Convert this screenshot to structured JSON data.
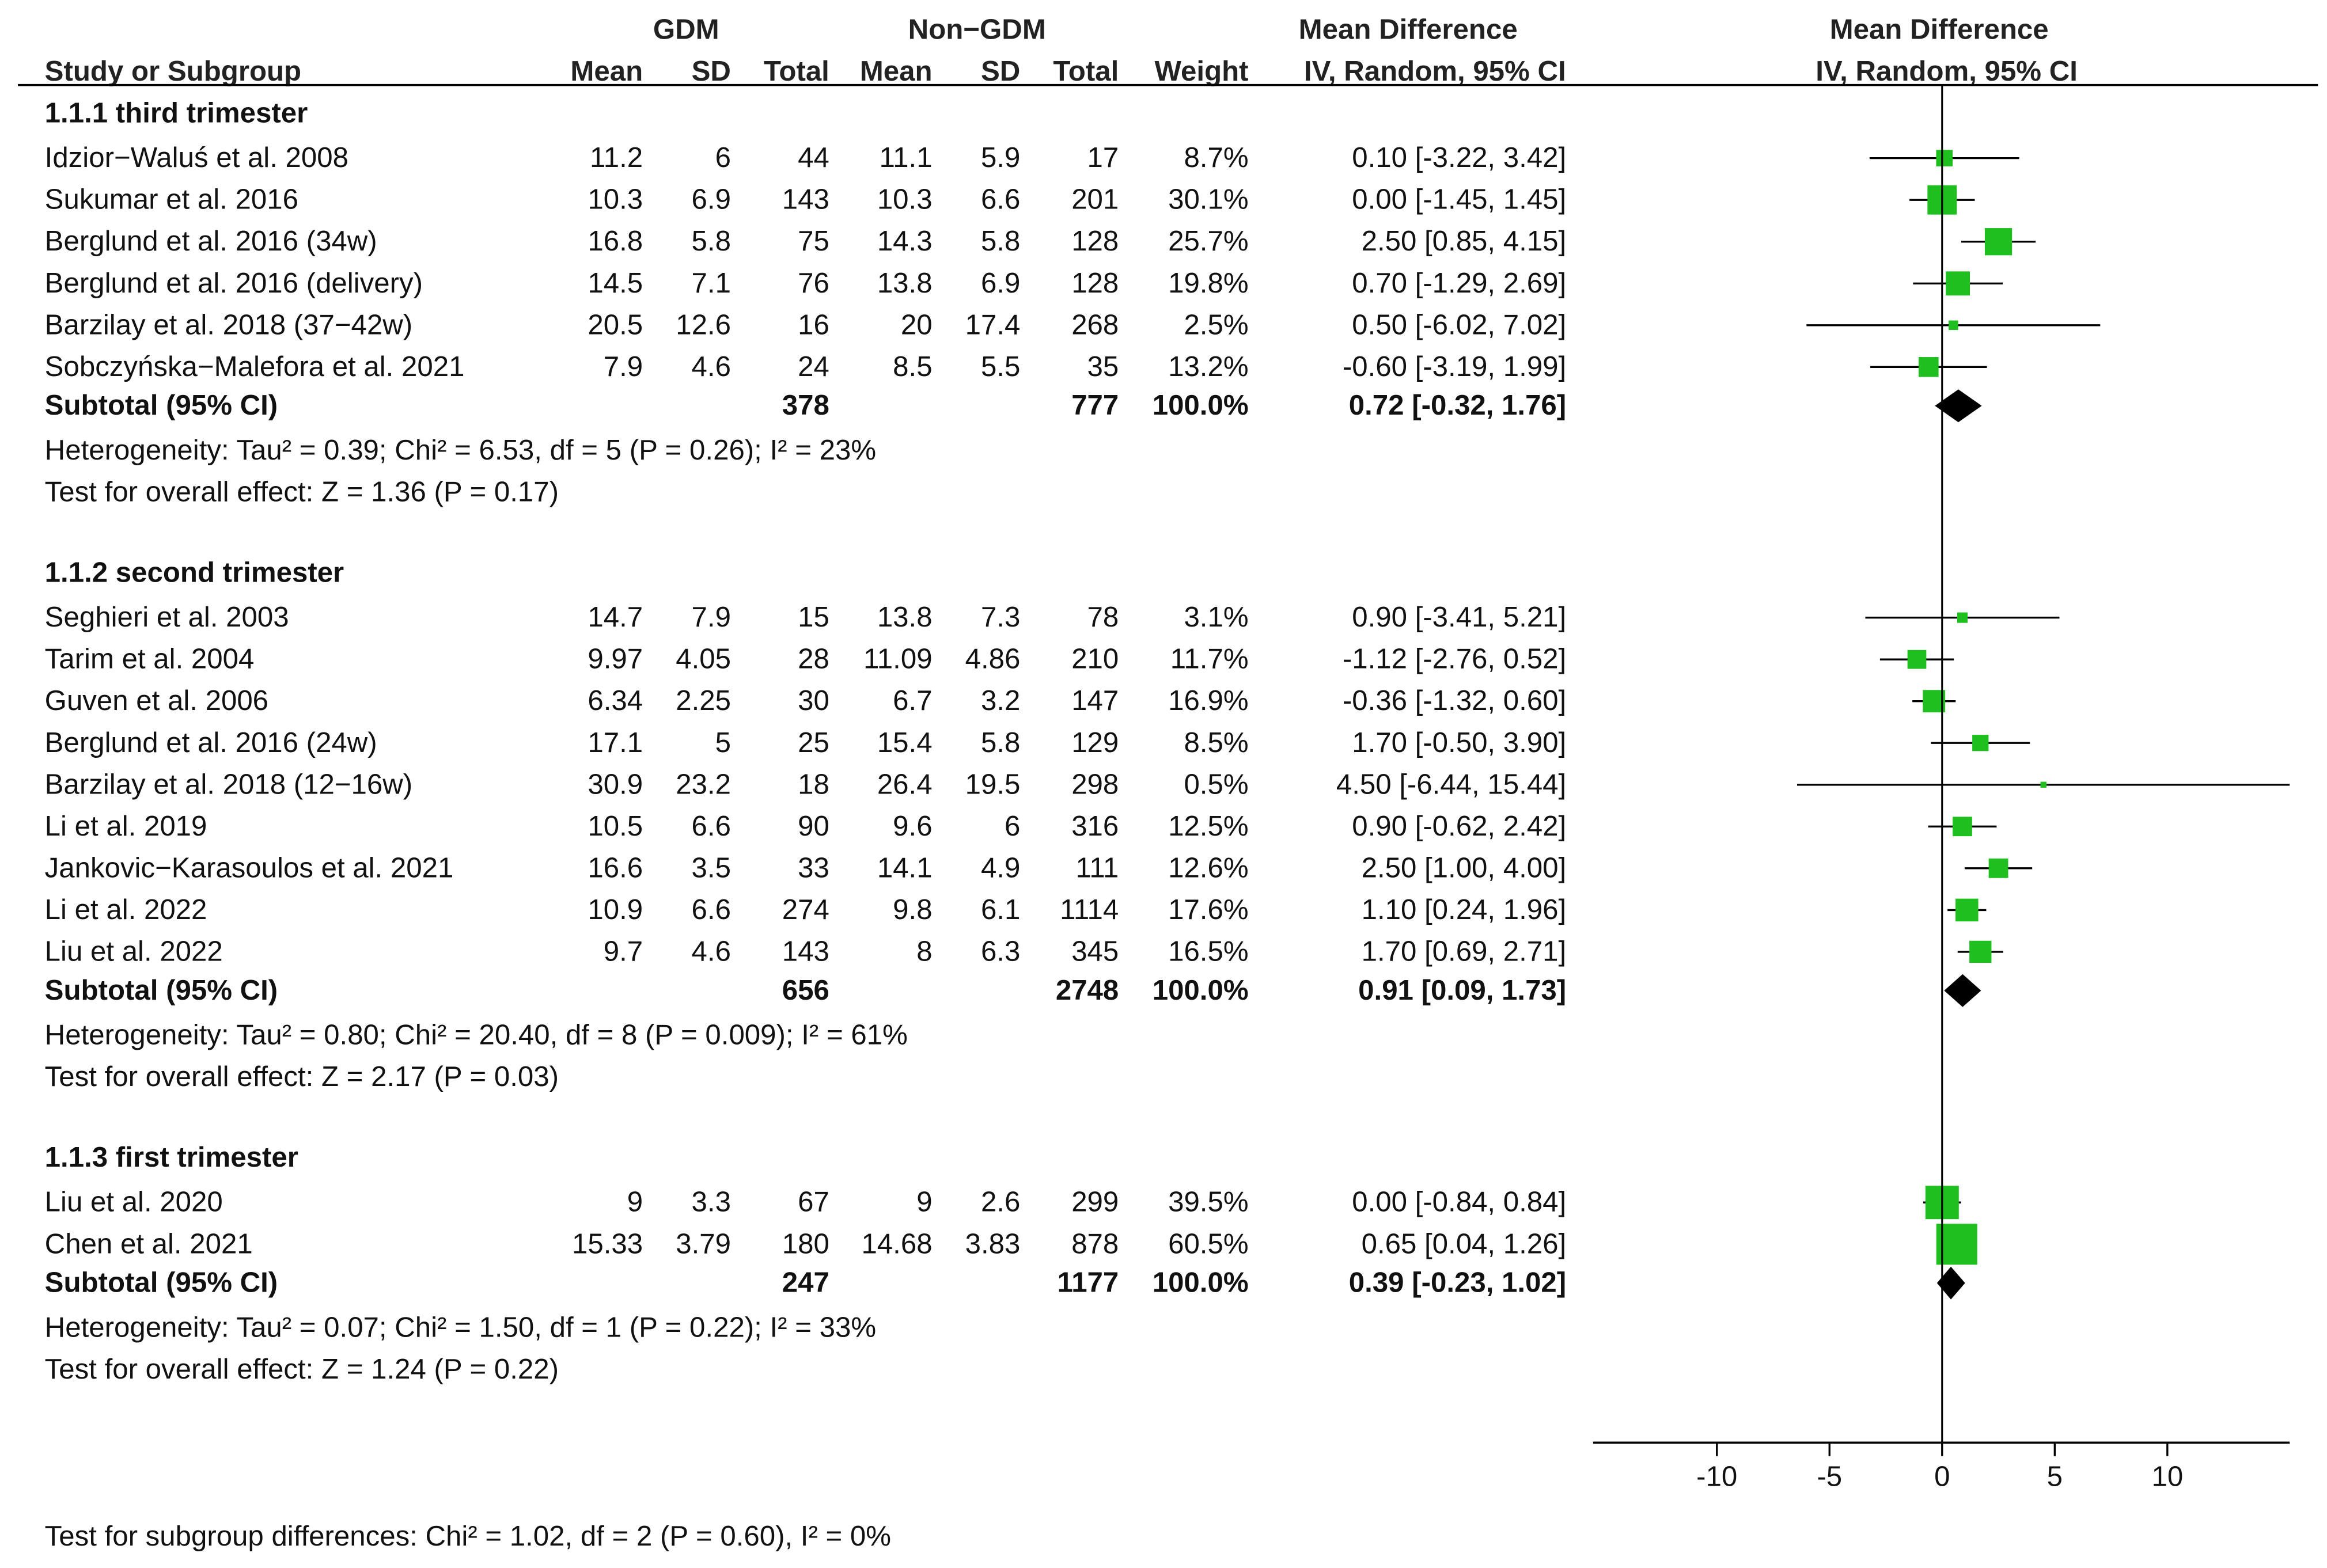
{
  "header": {
    "group1": "GDM",
    "group2": "Non−GDM",
    "md_text": "Mean Difference",
    "md_plot": "Mean Difference",
    "col_study": "Study or Subgroup",
    "col_mean1": "Mean",
    "col_sd1": "SD",
    "col_total1": "Total",
    "col_mean2": "Mean",
    "col_sd2": "SD",
    "col_total2": "Total",
    "col_weight": "Weight",
    "col_ci": "IV, Random, 95% CI",
    "col_ci_plot": "IV, Random, 95% CI"
  },
  "footer": {
    "subgroup_test": "Test for subgroup differences: Chi² = 1.02, df = 2 (P = 0.60), I² = 0%"
  },
  "colors": {
    "study_marker": "#1fbf1f",
    "summary_marker": "#000000",
    "line": "#000000"
  },
  "chart_data": {
    "type": "forest",
    "x_axis": {
      "range": [
        -15,
        15
      ],
      "ticks": [
        -10,
        -5,
        0,
        5,
        10
      ],
      "tick_labels": [
        "-10",
        "-5",
        "0",
        "5",
        "10"
      ]
    },
    "groups": [
      {
        "title": "1.1.1 third trimester",
        "studies": [
          {
            "name": "Idzior−Waluś et al. 2008",
            "mean1": "11.2",
            "sd1": "6",
            "n1": "44",
            "mean2": "11.1",
            "sd2": "5.9",
            "n2": "17",
            "weight": "8.7%",
            "ci_text": "0.10 [-3.22, 3.42]",
            "md": 0.1,
            "lo": -3.22,
            "hi": 3.42,
            "w": 8.7
          },
          {
            "name": "Sukumar et al. 2016",
            "mean1": "10.3",
            "sd1": "6.9",
            "n1": "143",
            "mean2": "10.3",
            "sd2": "6.6",
            "n2": "201",
            "weight": "30.1%",
            "ci_text": "0.00 [-1.45, 1.45]",
            "md": 0.0,
            "lo": -1.45,
            "hi": 1.45,
            "w": 30.1
          },
          {
            "name": "Berglund et al. 2016 (34w)",
            "mean1": "16.8",
            "sd1": "5.8",
            "n1": "75",
            "mean2": "14.3",
            "sd2": "5.8",
            "n2": "128",
            "weight": "25.7%",
            "ci_text": "2.50 [0.85, 4.15]",
            "md": 2.5,
            "lo": 0.85,
            "hi": 4.15,
            "w": 25.7
          },
          {
            "name": "Berglund et al. 2016 (delivery)",
            "mean1": "14.5",
            "sd1": "7.1",
            "n1": "76",
            "mean2": "13.8",
            "sd2": "6.9",
            "n2": "128",
            "weight": "19.8%",
            "ci_text": "0.70 [-1.29, 2.69]",
            "md": 0.7,
            "lo": -1.29,
            "hi": 2.69,
            "w": 19.8
          },
          {
            "name": "Barzilay et al. 2018 (37−42w)",
            "mean1": "20.5",
            "sd1": "12.6",
            "n1": "16",
            "mean2": "20",
            "sd2": "17.4",
            "n2": "268",
            "weight": "2.5%",
            "ci_text": "0.50 [-6.02, 7.02]",
            "md": 0.5,
            "lo": -6.02,
            "hi": 7.02,
            "w": 2.5
          },
          {
            "name": "Sobczyńska−Malefora et al. 2021",
            "mean1": "7.9",
            "sd1": "4.6",
            "n1": "24",
            "mean2": "8.5",
            "sd2": "5.5",
            "n2": "35",
            "weight": "13.2%",
            "ci_text": "-0.60 [-3.19, 1.99]",
            "md": -0.6,
            "lo": -3.19,
            "hi": 1.99,
            "w": 13.2
          }
        ],
        "subtotal": {
          "label": "Subtotal (95% CI)",
          "n1": "378",
          "n2": "777",
          "weight": "100.0%",
          "ci_text": "0.72 [-0.32, 1.76]",
          "md": 0.72,
          "lo": -0.32,
          "hi": 1.76
        },
        "heterogeneity": "Heterogeneity: Tau² = 0.39; Chi² = 6.53, df = 5 (P = 0.26); I² = 23%",
        "overall": "Test for overall effect: Z = 1.36 (P = 0.17)"
      },
      {
        "title": "1.1.2 second trimester",
        "studies": [
          {
            "name": "Seghieri et al. 2003",
            "mean1": "14.7",
            "sd1": "7.9",
            "n1": "15",
            "mean2": "13.8",
            "sd2": "7.3",
            "n2": "78",
            "weight": "3.1%",
            "ci_text": "0.90 [-3.41, 5.21]",
            "md": 0.9,
            "lo": -3.41,
            "hi": 5.21,
            "w": 3.1
          },
          {
            "name": "Tarim et al. 2004",
            "mean1": "9.97",
            "sd1": "4.05",
            "n1": "28",
            "mean2": "11.09",
            "sd2": "4.86",
            "n2": "210",
            "weight": "11.7%",
            "ci_text": "-1.12 [-2.76, 0.52]",
            "md": -1.12,
            "lo": -2.76,
            "hi": 0.52,
            "w": 11.7
          },
          {
            "name": "Guven et al. 2006",
            "mean1": "6.34",
            "sd1": "2.25",
            "n1": "30",
            "mean2": "6.7",
            "sd2": "3.2",
            "n2": "147",
            "weight": "16.9%",
            "ci_text": "-0.36 [-1.32, 0.60]",
            "md": -0.36,
            "lo": -1.32,
            "hi": 0.6,
            "w": 16.9
          },
          {
            "name": "Berglund et al. 2016 (24w)",
            "mean1": "17.1",
            "sd1": "5",
            "n1": "25",
            "mean2": "15.4",
            "sd2": "5.8",
            "n2": "129",
            "weight": "8.5%",
            "ci_text": "1.70 [-0.50, 3.90]",
            "md": 1.7,
            "lo": -0.5,
            "hi": 3.9,
            "w": 8.5
          },
          {
            "name": "Barzilay et al. 2018 (12−16w)",
            "mean1": "30.9",
            "sd1": "23.2",
            "n1": "18",
            "mean2": "26.4",
            "sd2": "19.5",
            "n2": "298",
            "weight": "0.5%",
            "ci_text": "4.50 [-6.44, 15.44]",
            "md": 4.5,
            "lo": -6.44,
            "hi": 15.44,
            "w": 0.5
          },
          {
            "name": "Li et al. 2019",
            "mean1": "10.5",
            "sd1": "6.6",
            "n1": "90",
            "mean2": "9.6",
            "sd2": "6",
            "n2": "316",
            "weight": "12.5%",
            "ci_text": "0.90 [-0.62, 2.42]",
            "md": 0.9,
            "lo": -0.62,
            "hi": 2.42,
            "w": 12.5
          },
          {
            "name": "Jankovic−Karasoulos et al. 2021",
            "mean1": "16.6",
            "sd1": "3.5",
            "n1": "33",
            "mean2": "14.1",
            "sd2": "4.9",
            "n2": "111",
            "weight": "12.6%",
            "ci_text": "2.50 [1.00, 4.00]",
            "md": 2.5,
            "lo": 1.0,
            "hi": 4.0,
            "w": 12.6
          },
          {
            "name": "Li et al. 2022",
            "mean1": "10.9",
            "sd1": "6.6",
            "n1": "274",
            "mean2": "9.8",
            "sd2": "6.1",
            "n2": "1114",
            "weight": "17.6%",
            "ci_text": "1.10 [0.24, 1.96]",
            "md": 1.1,
            "lo": 0.24,
            "hi": 1.96,
            "w": 17.6
          },
          {
            "name": "Liu et al. 2022",
            "mean1": "9.7",
            "sd1": "4.6",
            "n1": "143",
            "mean2": "8",
            "sd2": "6.3",
            "n2": "345",
            "weight": "16.5%",
            "ci_text": "1.70 [0.69, 2.71]",
            "md": 1.7,
            "lo": 0.69,
            "hi": 2.71,
            "w": 16.5
          }
        ],
        "subtotal": {
          "label": "Subtotal (95% CI)",
          "n1": "656",
          "n2": "2748",
          "weight": "100.0%",
          "ci_text": "0.91 [0.09, 1.73]",
          "md": 0.91,
          "lo": 0.09,
          "hi": 1.73
        },
        "heterogeneity": "Heterogeneity: Tau² = 0.80; Chi² = 20.40, df = 8 (P = 0.009); I² = 61%",
        "overall": "Test for overall effect: Z = 2.17 (P = 0.03)"
      },
      {
        "title": "1.1.3 first trimester",
        "studies": [
          {
            "name": "Liu et al. 2020",
            "mean1": "9",
            "sd1": "3.3",
            "n1": "67",
            "mean2": "9",
            "sd2": "2.6",
            "n2": "299",
            "weight": "39.5%",
            "ci_text": "0.00 [-0.84, 0.84]",
            "md": 0.0,
            "lo": -0.84,
            "hi": 0.84,
            "w": 39.5
          },
          {
            "name": "Chen et al. 2021",
            "mean1": "15.33",
            "sd1": "3.79",
            "n1": "180",
            "mean2": "14.68",
            "sd2": "3.83",
            "n2": "878",
            "weight": "60.5%",
            "ci_text": "0.65 [0.04, 1.26]",
            "md": 0.65,
            "lo": 0.04,
            "hi": 1.26,
            "w": 60.5
          }
        ],
        "subtotal": {
          "label": "Subtotal (95% CI)",
          "n1": "247",
          "n2": "1177",
          "weight": "100.0%",
          "ci_text": "0.39 [-0.23, 1.02]",
          "md": 0.39,
          "lo": -0.23,
          "hi": 1.02
        },
        "heterogeneity": "Heterogeneity: Tau² = 0.07; Chi² = 1.50, df = 1 (P = 0.22); I² = 33%",
        "overall": "Test for overall effect: Z = 1.24 (P = 0.22)"
      }
    ]
  }
}
